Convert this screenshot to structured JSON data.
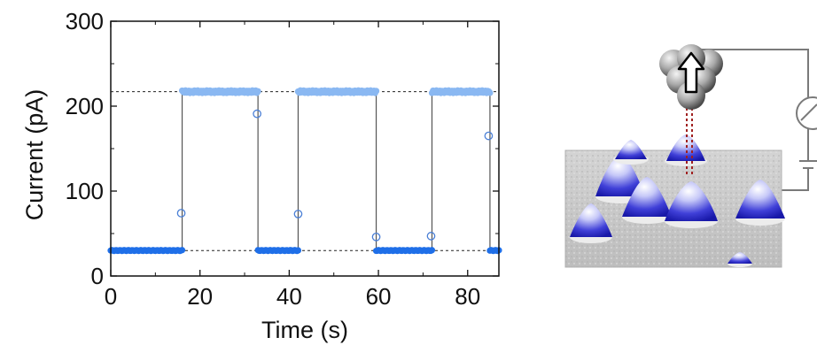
{
  "chart_data": {
    "type": "scatter",
    "title": "",
    "xlabel": "Time (s)",
    "ylabel": "Current (pA)",
    "xlim": [
      0,
      87
    ],
    "ylim": [
      0,
      300
    ],
    "xticks": [
      0,
      20,
      40,
      60,
      80
    ],
    "xtick_labels": [
      "0",
      "20",
      "40",
      "60",
      "80"
    ],
    "yticks": [
      0,
      100,
      200,
      300
    ],
    "ytick_labels": [
      "0",
      "100",
      "200",
      "300"
    ],
    "grid": false,
    "reference_levels": [
      30,
      217
    ],
    "state_segments": [
      {
        "state": "low",
        "x_start": 0,
        "x_end": 16,
        "y": 30
      },
      {
        "state": "high",
        "x_start": 16,
        "x_end": 33,
        "y": 217
      },
      {
        "state": "low",
        "x_start": 33,
        "x_end": 42,
        "y": 30
      },
      {
        "state": "high",
        "x_start": 42,
        "x_end": 59.5,
        "y": 217
      },
      {
        "state": "low",
        "x_start": 59.5,
        "x_end": 72,
        "y": 30
      },
      {
        "state": "high",
        "x_start": 72,
        "x_end": 85,
        "y": 217
      },
      {
        "state": "low",
        "x_start": 85,
        "x_end": 87,
        "y": 30
      }
    ],
    "transition_points": [
      {
        "x": 15.8,
        "y": 74
      },
      {
        "x": 32.8,
        "y": 191
      },
      {
        "x": 42.0,
        "y": 73
      },
      {
        "x": 59.5,
        "y": 46
      },
      {
        "x": 71.8,
        "y": 47
      },
      {
        "x": 84.7,
        "y": 165
      }
    ],
    "colors": {
      "low_state": "#1f6fe8",
      "high_state": "#8ab8f2",
      "transition_marker": "#4a7fd6",
      "trace_line": "#555555",
      "reference_line": "#222222"
    }
  },
  "illustration": {
    "description_icon": "stm-tip-over-surface-icon",
    "tip_arrow_icon": "up-arrow-icon"
  }
}
